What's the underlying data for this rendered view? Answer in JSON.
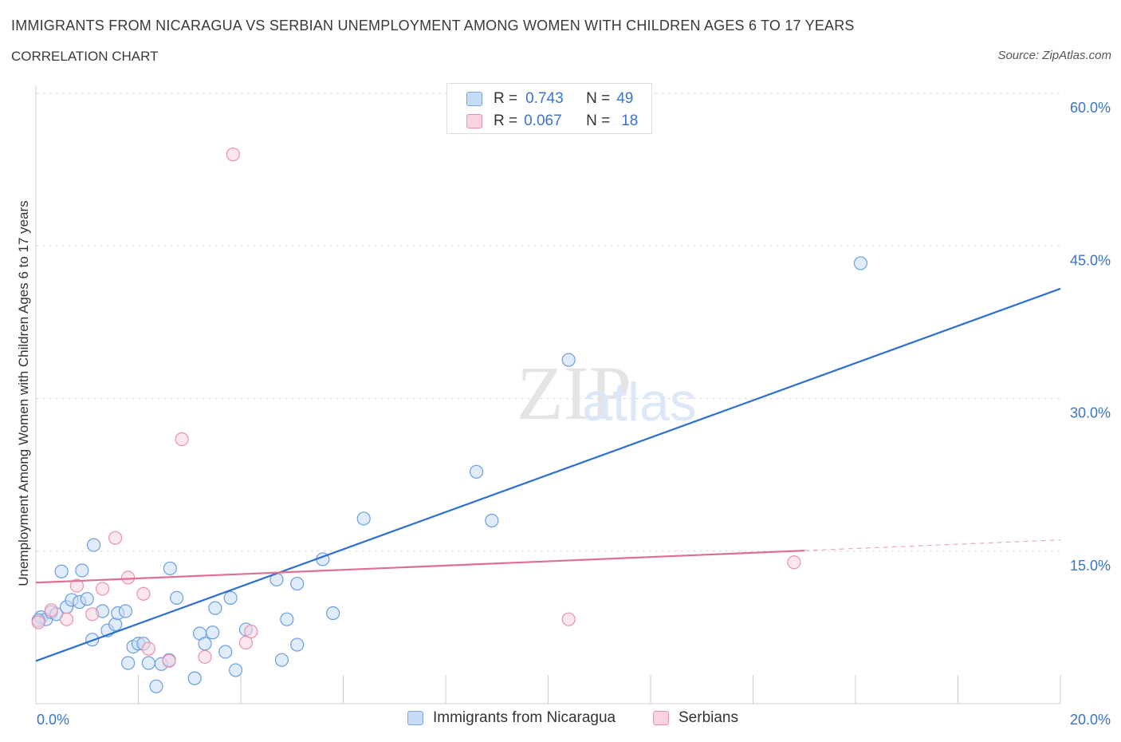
{
  "header": {
    "title": "IMMIGRANTS FROM NICARAGUA VS SERBIAN UNEMPLOYMENT AMONG WOMEN WITH CHILDREN AGES 6 TO 17 YEARS",
    "subtitle": "CORRELATION CHART",
    "source": "Source: ZipAtlas.com"
  },
  "watermark": {
    "zip": "ZIP",
    "atlas": "atlas"
  },
  "legend": {
    "r_label": "R =",
    "n_label": "N =",
    "rows": [
      {
        "r": "0.743",
        "n": "49",
        "color": "#a8c8f0",
        "border": "#7aa6e0"
      },
      {
        "r": "0.067",
        "n": "18",
        "color": "#f8c0d0",
        "border": "#e890ab"
      }
    ]
  },
  "chart_data": {
    "type": "scatter",
    "title": "IMMIGRANTS FROM NICARAGUA VS SERBIAN UNEMPLOYMENT AMONG WOMEN WITH CHILDREN AGES 6 TO 17 YEARS",
    "ylabel": "Unemployment Among Women with Children Ages 6 to 17 years",
    "xlabel": "",
    "xlim": [
      0,
      20
    ],
    "ylim": [
      0,
      60
    ],
    "x_tick_labels": [
      "0.0%",
      "20.0%"
    ],
    "y_ticks": [
      15,
      30,
      45,
      60
    ],
    "y_tick_labels": [
      "15.0%",
      "30.0%",
      "45.0%",
      "60.0%"
    ],
    "grid": true,
    "legend_position": "top-center",
    "series": [
      {
        "name": "Immigrants from Nicaragua",
        "color": "#6a9de0",
        "fill": "#c6dcf6",
        "line_color": "#2f6fce",
        "trend": {
          "x": [
            0,
            20
          ],
          "y": [
            4.2,
            40.8
          ],
          "solid_to": 20
        },
        "points": [
          [
            0.1,
            8.5
          ],
          [
            0.2,
            8.3
          ],
          [
            0.3,
            9.0
          ],
          [
            0.4,
            8.8
          ],
          [
            0.5,
            13.0
          ],
          [
            0.6,
            9.5
          ],
          [
            0.7,
            10.2
          ],
          [
            0.85,
            10.0
          ],
          [
            0.9,
            13.1
          ],
          [
            1.0,
            10.3
          ],
          [
            1.1,
            6.3
          ],
          [
            1.13,
            15.6
          ],
          [
            1.3,
            9.1
          ],
          [
            1.4,
            7.2
          ],
          [
            1.55,
            7.8
          ],
          [
            1.6,
            8.9
          ],
          [
            1.75,
            9.1
          ],
          [
            1.8,
            4.0
          ],
          [
            1.9,
            5.6
          ],
          [
            2.0,
            5.9
          ],
          [
            2.1,
            5.9
          ],
          [
            2.2,
            4.0
          ],
          [
            2.35,
            1.7
          ],
          [
            2.45,
            3.9
          ],
          [
            2.6,
            4.3
          ],
          [
            2.62,
            13.3
          ],
          [
            2.75,
            10.4
          ],
          [
            3.1,
            2.5
          ],
          [
            3.2,
            6.9
          ],
          [
            3.3,
            5.9
          ],
          [
            3.45,
            7.0
          ],
          [
            3.5,
            9.4
          ],
          [
            3.7,
            5.1
          ],
          [
            3.8,
            10.4
          ],
          [
            3.9,
            3.3
          ],
          [
            4.1,
            7.3
          ],
          [
            4.7,
            12.2
          ],
          [
            4.8,
            4.3
          ],
          [
            4.9,
            8.3
          ],
          [
            5.1,
            5.8
          ],
          [
            5.1,
            11.8
          ],
          [
            5.6,
            14.2
          ],
          [
            5.8,
            8.9
          ],
          [
            6.4,
            18.2
          ],
          [
            8.6,
            22.8
          ],
          [
            8.9,
            18.0
          ],
          [
            10.4,
            33.8
          ],
          [
            16.1,
            43.3
          ],
          [
            0.05,
            8.2
          ]
        ]
      },
      {
        "name": "Serbians",
        "color": "#ec90ad",
        "fill": "#fad3df",
        "line_color": "#e0708f",
        "trend": {
          "x": [
            0,
            20
          ],
          "y": [
            11.9,
            16.1
          ],
          "solid_to": 15
        },
        "points": [
          [
            0.05,
            8.0
          ],
          [
            0.3,
            9.2
          ],
          [
            0.6,
            8.3
          ],
          [
            0.8,
            11.6
          ],
          [
            1.1,
            8.8
          ],
          [
            1.3,
            11.3
          ],
          [
            1.55,
            16.3
          ],
          [
            1.8,
            12.4
          ],
          [
            2.1,
            10.8
          ],
          [
            2.2,
            5.4
          ],
          [
            2.6,
            4.2
          ],
          [
            2.85,
            26.0
          ],
          [
            3.3,
            4.6
          ],
          [
            3.85,
            54.0
          ],
          [
            4.1,
            6.0
          ],
          [
            4.2,
            7.1
          ],
          [
            10.4,
            8.3
          ],
          [
            14.8,
            13.9
          ]
        ]
      }
    ]
  }
}
